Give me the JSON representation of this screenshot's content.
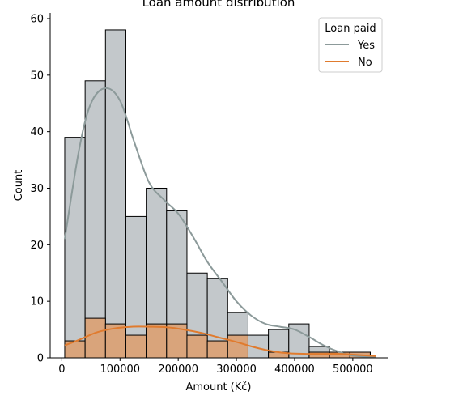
{
  "chart_data": {
    "type": "histogram",
    "title": "Loan amount distribution",
    "xlabel": "Amount (Kč)",
    "ylabel": "Count",
    "xlim": [
      -20000,
      560000
    ],
    "ylim": [
      0,
      61
    ],
    "x_ticks": [
      0,
      100000,
      200000,
      300000,
      400000,
      500000
    ],
    "x_tick_labels": [
      "0",
      "100000",
      "200000",
      "300000",
      "400000",
      "500000"
    ],
    "y_ticks": [
      0,
      10,
      20,
      30,
      40,
      50,
      60
    ],
    "y_tick_labels": [
      "0",
      "10",
      "20",
      "30",
      "40",
      "50",
      "60"
    ],
    "bins": [
      5000,
      40000,
      75000,
      110000,
      145000,
      180000,
      215000,
      250000,
      285000,
      320000,
      355000,
      390000,
      425000,
      460000,
      495000,
      530000,
      540000
    ],
    "series": [
      {
        "name": "Yes",
        "color": "#8c9a9a",
        "fill": "#c3c8cb",
        "counts": [
          39,
          49,
          58,
          25,
          30,
          26,
          15,
          14,
          8,
          4,
          5,
          6,
          2,
          1,
          1,
          0
        ],
        "kde_x": [
          5000,
          30000,
          50000,
          75000,
          100000,
          125000,
          150000,
          175000,
          200000,
          225000,
          250000,
          275000,
          300000,
          325000,
          350000,
          375000,
          400000,
          425000,
          450000,
          475000,
          500000,
          540000
        ],
        "kde_y": [
          21,
          37,
          45,
          47.7,
          45.5,
          38,
          31,
          28,
          25.5,
          21.5,
          17,
          13.5,
          10,
          7.5,
          6,
          5.5,
          5,
          3.7,
          2.2,
          1.1,
          0.4,
          0.1
        ]
      },
      {
        "name": "No",
        "color": "#e07b2e",
        "fill": "#d9a47b",
        "counts": [
          3,
          7,
          6,
          4,
          6,
          6,
          4,
          3,
          4,
          0,
          1,
          0,
          1,
          1,
          1,
          0
        ],
        "kde_x": [
          5000,
          30000,
          60000,
          90000,
          120000,
          150000,
          180000,
          210000,
          240000,
          270000,
          300000,
          330000,
          360000,
          390000,
          420000,
          450000,
          480000,
          510000,
          540000
        ],
        "kde_y": [
          2.2,
          3.2,
          4.5,
          5.2,
          5.5,
          5.5,
          5.4,
          5,
          4.4,
          3.6,
          2.8,
          1.9,
          1.2,
          0.8,
          0.7,
          0.7,
          0.7,
          0.5,
          0.3
        ]
      }
    ],
    "legend": {
      "title": "Loan paid",
      "placement": "top-right",
      "entries": [
        "Yes",
        "No"
      ]
    }
  }
}
